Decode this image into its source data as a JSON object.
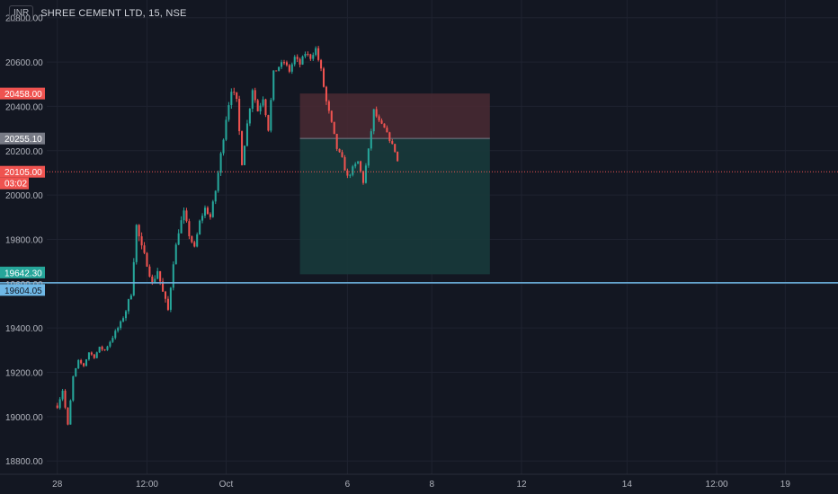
{
  "header": {
    "currency": "INR",
    "symbol_title": "SHREE CEMENT LTD, 15, NSE"
  },
  "colors": {
    "background": "#131722",
    "grid": "#1f2330",
    "up": "#26a69a",
    "down": "#ef5350",
    "axis_text": "#b2b5be",
    "hline": "#6fb8e6",
    "stop_zone": "#4a2a32",
    "target_zone": "#183a3b"
  },
  "chart_data": {
    "type": "candlestick",
    "y_ticks": [
      "18800.00",
      "19000.00",
      "19200.00",
      "19400.00",
      "19600.00",
      "19800.00",
      "20000.00",
      "20200.00",
      "20400.00",
      "20600.00",
      "20800.00"
    ],
    "y_tick_values": [
      18800,
      19000,
      19200,
      19400,
      19600,
      19800,
      20000,
      20200,
      20400,
      20600,
      20800
    ],
    "ylim": [
      18740,
      20880
    ],
    "x_ticks": [
      "28",
      "12:00",
      "Oct",
      "6",
      "8",
      "12",
      "14",
      "12:00",
      "19"
    ],
    "x_tick_index": [
      0,
      17,
      32,
      55,
      71,
      88,
      108,
      125,
      138
    ],
    "x_range": [
      -2,
      148
    ],
    "price_labels": [
      {
        "name": "stop-loss",
        "text": "20458.00",
        "value": 20458,
        "color": "#ef5350"
      },
      {
        "name": "entry",
        "text": "20255.10",
        "value": 20255.1,
        "color": "#787b86"
      },
      {
        "name": "last-price",
        "text": "20105.00",
        "value": 20105,
        "color": "#ef5350"
      },
      {
        "name": "target",
        "text": "19642.30",
        "value": 19642.3,
        "color": "#26a69a"
      },
      {
        "name": "horizontal-line",
        "text": "19604.05",
        "value": 19604.05,
        "color": "#6fb8e6"
      }
    ],
    "countdown": "03:02",
    "position": {
      "entry": 20255.1,
      "stop": 20458,
      "target": 19642.3,
      "start_index": 46,
      "end_index": 82
    },
    "horizontal_line": 19604.05,
    "close_path": [
      [
        0,
        19050
      ],
      [
        1,
        19120
      ],
      [
        2,
        18960
      ],
      [
        3,
        19180
      ],
      [
        4,
        19250
      ],
      [
        5,
        19230
      ],
      [
        6,
        19290
      ],
      [
        7,
        19270
      ],
      [
        8,
        19310
      ],
      [
        9,
        19300
      ],
      [
        10,
        19340
      ],
      [
        11,
        19380
      ],
      [
        12,
        19420
      ],
      [
        13,
        19480
      ],
      [
        14,
        19560
      ],
      [
        15,
        19860
      ],
      [
        16,
        19760
      ],
      [
        17,
        19690
      ],
      [
        18,
        19600
      ],
      [
        19,
        19660
      ],
      [
        20,
        19560
      ],
      [
        21,
        19480
      ],
      [
        22,
        19700
      ],
      [
        23,
        19840
      ],
      [
        24,
        19920
      ],
      [
        25,
        19820
      ],
      [
        26,
        19760
      ],
      [
        27,
        19880
      ],
      [
        28,
        19940
      ],
      [
        29,
        19900
      ],
      [
        30,
        20020
      ],
      [
        31,
        20180
      ],
      [
        32,
        20350
      ],
      [
        33,
        20480
      ],
      [
        34,
        20420
      ],
      [
        35,
        20150
      ],
      [
        36,
        20320
      ],
      [
        37,
        20480
      ],
      [
        38,
        20380
      ],
      [
        39,
        20440
      ],
      [
        40,
        20300
      ],
      [
        41,
        20550
      ],
      [
        42,
        20580
      ],
      [
        43,
        20600
      ],
      [
        44,
        20560
      ],
      [
        45,
        20620
      ],
      [
        46,
        20590
      ],
      [
        47,
        20640
      ],
      [
        48,
        20620
      ],
      [
        49,
        20660
      ],
      [
        50,
        20560
      ],
      [
        51,
        20420
      ],
      [
        52,
        20320
      ],
      [
        53,
        20210
      ],
      [
        54,
        20160
      ],
      [
        55,
        20080
      ],
      [
        56,
        20120
      ],
      [
        57,
        20150
      ],
      [
        58,
        20060
      ],
      [
        59,
        20200
      ],
      [
        60,
        20380
      ],
      [
        61,
        20330
      ],
      [
        62,
        20300
      ],
      [
        63,
        20250
      ],
      [
        64,
        20200
      ],
      [
        65,
        20105
      ]
    ],
    "vol_mult": [
      0.2,
      0.16,
      0.12,
      0.1,
      0.1,
      0.1,
      0.1,
      0.12,
      0.12,
      0.14,
      0.16,
      0.18,
      0.2,
      0.24,
      0.28,
      0.36,
      0.3,
      0.24,
      0.28,
      0.26,
      0.26,
      0.28,
      0.26,
      0.3,
      0.24,
      0.22,
      0.18,
      0.18,
      0.18,
      0.22,
      0.26,
      0.3,
      0.32,
      0.3,
      0.28,
      0.3,
      0.26,
      0.24,
      0.22,
      0.22,
      0.26,
      0.22,
      0.2,
      0.18,
      0.2,
      0.2,
      0.2,
      0.18,
      0.18,
      0.18,
      0.26,
      0.28,
      0.24,
      0.2,
      0.22,
      0.22,
      0.18,
      0.2,
      0.2,
      0.22,
      0.22,
      0.16,
      0.16,
      0.14,
      0.14,
      0.12
    ]
  }
}
